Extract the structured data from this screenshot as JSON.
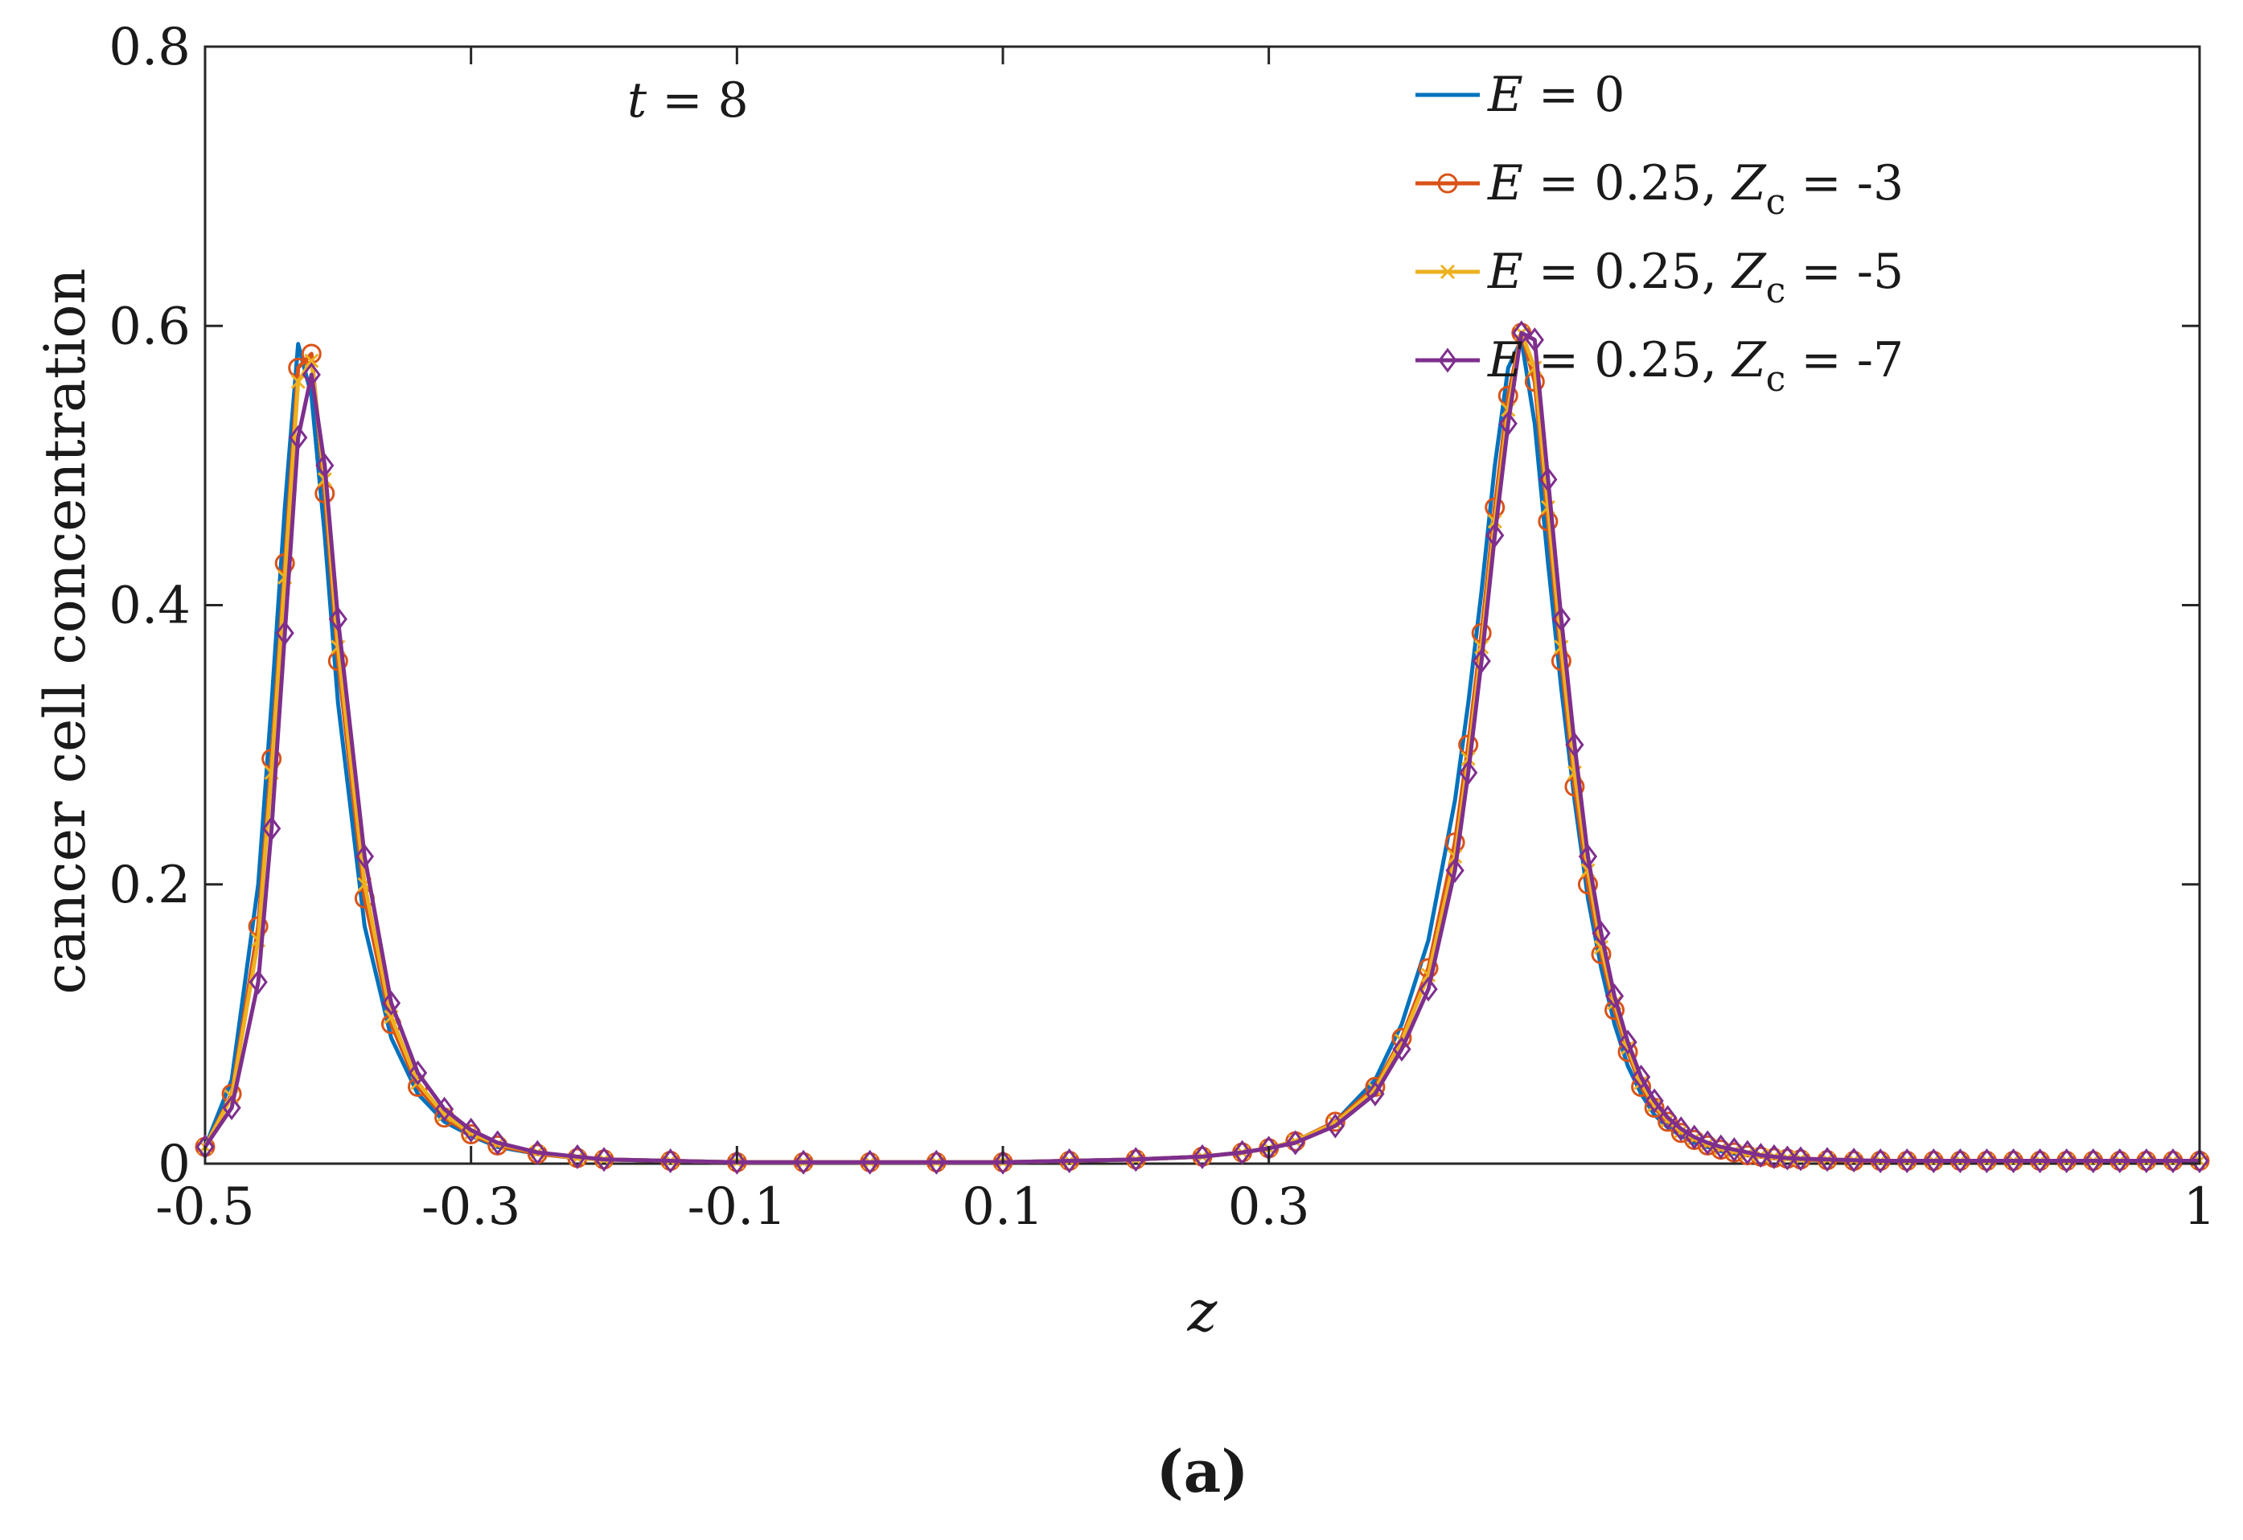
{
  "chart_data": {
    "type": "line",
    "xlabel": "z",
    "ylabel": "cancer cell concentration",
    "annotation": "t = 8",
    "caption": "(a)",
    "xlim": [
      -0.5,
      1
    ],
    "ylim": [
      0,
      0.8
    ],
    "xticks": [
      -0.5,
      -0.3,
      -0.1,
      0.1,
      0.3,
      1
    ],
    "xtick_labels": [
      "-0.5",
      "-0.3",
      "-0.1",
      "0.1",
      "0.3",
      "1"
    ],
    "yticks": [
      0,
      0.2,
      0.4,
      0.6,
      0.8
    ],
    "ytick_labels": [
      "0",
      "0.2",
      "0.4",
      "0.6",
      "0.8"
    ],
    "grid": false,
    "legend_position": "top-right",
    "series": [
      {
        "name": "E = 0",
        "color": "#0072BD",
        "marker": "none",
        "x": [
          -0.5,
          -0.48,
          -0.46,
          -0.45,
          -0.44,
          -0.43,
          -0.42,
          -0.41,
          -0.4,
          -0.38,
          -0.36,
          -0.34,
          -0.32,
          -0.3,
          -0.28,
          -0.25,
          -0.22,
          -0.2,
          -0.15,
          -0.1,
          -0.05,
          0.0,
          0.05,
          0.1,
          0.15,
          0.2,
          0.25,
          0.28,
          0.3,
          0.32,
          0.35,
          0.38,
          0.4,
          0.42,
          0.44,
          0.45,
          0.46,
          0.47,
          0.48,
          0.49,
          0.5,
          0.51,
          0.52,
          0.53,
          0.54,
          0.55,
          0.56,
          0.57,
          0.58,
          0.59,
          0.6,
          0.61,
          0.62,
          0.63,
          0.64,
          0.65,
          0.66,
          0.67,
          0.68,
          0.69,
          0.7,
          0.72,
          0.74,
          0.76,
          0.78,
          0.8,
          0.82,
          0.84,
          0.86,
          0.88,
          0.9,
          0.92,
          0.94,
          0.96,
          0.98,
          1.0
        ],
        "y": [
          0.012,
          0.06,
          0.2,
          0.33,
          0.47,
          0.587,
          0.55,
          0.45,
          0.33,
          0.17,
          0.09,
          0.05,
          0.03,
          0.02,
          0.012,
          0.007,
          0.004,
          0.003,
          0.002,
          0.001,
          0.001,
          0.001,
          0.001,
          0.001,
          0.002,
          0.003,
          0.005,
          0.008,
          0.011,
          0.016,
          0.03,
          0.06,
          0.1,
          0.16,
          0.26,
          0.33,
          0.41,
          0.5,
          0.57,
          0.59,
          0.53,
          0.43,
          0.34,
          0.26,
          0.19,
          0.14,
          0.1,
          0.07,
          0.05,
          0.035,
          0.026,
          0.02,
          0.015,
          0.012,
          0.009,
          0.007,
          0.006,
          0.005,
          0.004,
          0.0035,
          0.003,
          0.0025,
          0.002,
          0.002,
          0.002,
          0.002,
          0.002,
          0.002,
          0.002,
          0.002,
          0.002,
          0.002,
          0.002,
          0.002,
          0.002,
          0.002
        ]
      },
      {
        "name": "E = 0.25, Zc = -3",
        "color": "#D95319",
        "marker": "circle",
        "x": [
          -0.5,
          -0.48,
          -0.46,
          -0.45,
          -0.44,
          -0.43,
          -0.42,
          -0.41,
          -0.4,
          -0.38,
          -0.36,
          -0.34,
          -0.32,
          -0.3,
          -0.28,
          -0.25,
          -0.22,
          -0.2,
          -0.15,
          -0.1,
          -0.05,
          0.0,
          0.05,
          0.1,
          0.15,
          0.2,
          0.25,
          0.28,
          0.3,
          0.32,
          0.35,
          0.38,
          0.4,
          0.42,
          0.44,
          0.45,
          0.46,
          0.47,
          0.48,
          0.49,
          0.5,
          0.51,
          0.52,
          0.53,
          0.54,
          0.55,
          0.56,
          0.57,
          0.58,
          0.59,
          0.6,
          0.61,
          0.62,
          0.63,
          0.64,
          0.65,
          0.66,
          0.67,
          0.68,
          0.69,
          0.7,
          0.72,
          0.74,
          0.76,
          0.78,
          0.8,
          0.82,
          0.84,
          0.86,
          0.88,
          0.9,
          0.92,
          0.94,
          0.96,
          0.98,
          1.0
        ],
        "y": [
          0.012,
          0.05,
          0.17,
          0.29,
          0.43,
          0.57,
          0.58,
          0.48,
          0.36,
          0.19,
          0.1,
          0.055,
          0.033,
          0.021,
          0.013,
          0.007,
          0.004,
          0.003,
          0.002,
          0.001,
          0.001,
          0.001,
          0.001,
          0.001,
          0.002,
          0.003,
          0.005,
          0.008,
          0.011,
          0.016,
          0.03,
          0.055,
          0.09,
          0.14,
          0.23,
          0.3,
          0.38,
          0.47,
          0.55,
          0.595,
          0.56,
          0.46,
          0.36,
          0.27,
          0.2,
          0.15,
          0.11,
          0.08,
          0.055,
          0.04,
          0.03,
          0.022,
          0.017,
          0.013,
          0.01,
          0.008,
          0.006,
          0.005,
          0.004,
          0.0035,
          0.003,
          0.0025,
          0.002,
          0.002,
          0.002,
          0.002,
          0.002,
          0.002,
          0.002,
          0.002,
          0.002,
          0.002,
          0.002,
          0.002,
          0.002,
          0.002
        ]
      },
      {
        "name": "E = 0.25, Zc = -5",
        "color": "#EDB120",
        "marker": "x",
        "x": [
          -0.5,
          -0.48,
          -0.46,
          -0.45,
          -0.44,
          -0.43,
          -0.42,
          -0.41,
          -0.4,
          -0.38,
          -0.36,
          -0.34,
          -0.32,
          -0.3,
          -0.28,
          -0.25,
          -0.22,
          -0.2,
          -0.15,
          -0.1,
          -0.05,
          0.0,
          0.05,
          0.1,
          0.15,
          0.2,
          0.25,
          0.28,
          0.3,
          0.32,
          0.35,
          0.38,
          0.4,
          0.42,
          0.44,
          0.45,
          0.46,
          0.47,
          0.48,
          0.49,
          0.5,
          0.51,
          0.52,
          0.53,
          0.54,
          0.55,
          0.56,
          0.57,
          0.58,
          0.59,
          0.6,
          0.61,
          0.62,
          0.63,
          0.64,
          0.65,
          0.66,
          0.67,
          0.68,
          0.69,
          0.7,
          0.72,
          0.74,
          0.76,
          0.78,
          0.8,
          0.82,
          0.84,
          0.86,
          0.88,
          0.9,
          0.92,
          0.94,
          0.96,
          0.98,
          1.0
        ],
        "y": [
          0.012,
          0.048,
          0.16,
          0.28,
          0.42,
          0.56,
          0.575,
          0.49,
          0.37,
          0.2,
          0.105,
          0.058,
          0.035,
          0.022,
          0.014,
          0.008,
          0.004,
          0.003,
          0.002,
          0.001,
          0.001,
          0.001,
          0.001,
          0.001,
          0.002,
          0.003,
          0.005,
          0.008,
          0.011,
          0.016,
          0.029,
          0.053,
          0.088,
          0.135,
          0.22,
          0.29,
          0.37,
          0.46,
          0.54,
          0.595,
          0.57,
          0.47,
          0.37,
          0.28,
          0.21,
          0.155,
          0.115,
          0.083,
          0.058,
          0.042,
          0.031,
          0.023,
          0.018,
          0.014,
          0.011,
          0.009,
          0.007,
          0.006,
          0.005,
          0.004,
          0.0035,
          0.003,
          0.0025,
          0.002,
          0.002,
          0.002,
          0.002,
          0.002,
          0.002,
          0.002,
          0.002,
          0.002,
          0.002,
          0.002,
          0.002,
          0.002
        ]
      },
      {
        "name": "E = 0.25, Zc = -7",
        "color": "#7E2F8E",
        "marker": "diamond",
        "x": [
          -0.5,
          -0.48,
          -0.46,
          -0.45,
          -0.44,
          -0.43,
          -0.42,
          -0.41,
          -0.4,
          -0.38,
          -0.36,
          -0.34,
          -0.32,
          -0.3,
          -0.28,
          -0.25,
          -0.22,
          -0.2,
          -0.15,
          -0.1,
          -0.05,
          0.0,
          0.05,
          0.1,
          0.15,
          0.2,
          0.25,
          0.28,
          0.3,
          0.32,
          0.35,
          0.38,
          0.4,
          0.42,
          0.44,
          0.45,
          0.46,
          0.47,
          0.48,
          0.49,
          0.5,
          0.51,
          0.52,
          0.53,
          0.54,
          0.55,
          0.56,
          0.57,
          0.58,
          0.59,
          0.6,
          0.61,
          0.62,
          0.63,
          0.64,
          0.65,
          0.66,
          0.67,
          0.68,
          0.69,
          0.7,
          0.72,
          0.74,
          0.76,
          0.78,
          0.8,
          0.82,
          0.84,
          0.86,
          0.88,
          0.9,
          0.92,
          0.94,
          0.96,
          0.98,
          1.0
        ],
        "y": [
          0.012,
          0.04,
          0.13,
          0.24,
          0.38,
          0.52,
          0.565,
          0.5,
          0.39,
          0.22,
          0.115,
          0.065,
          0.039,
          0.024,
          0.015,
          0.008,
          0.005,
          0.003,
          0.002,
          0.001,
          0.001,
          0.001,
          0.001,
          0.001,
          0.002,
          0.003,
          0.005,
          0.008,
          0.011,
          0.015,
          0.027,
          0.05,
          0.082,
          0.125,
          0.21,
          0.28,
          0.36,
          0.45,
          0.53,
          0.595,
          0.59,
          0.49,
          0.39,
          0.3,
          0.22,
          0.165,
          0.12,
          0.087,
          0.062,
          0.045,
          0.033,
          0.025,
          0.019,
          0.015,
          0.012,
          0.01,
          0.008,
          0.006,
          0.005,
          0.004,
          0.0035,
          0.003,
          0.0025,
          0.002,
          0.002,
          0.002,
          0.002,
          0.002,
          0.002,
          0.002,
          0.002,
          0.002,
          0.002,
          0.002,
          0.002,
          0.002
        ]
      }
    ],
    "legend": [
      {
        "prefix": "E",
        "value": " = 0",
        "sub_label": "",
        "sub_value": ""
      },
      {
        "prefix": "E",
        "value": " = 0.25, ",
        "sub_label": "Z",
        "sub_index": "c",
        "sub_value": " = -3"
      },
      {
        "prefix": "E",
        "value": " = 0.25, ",
        "sub_label": "Z",
        "sub_index": "c",
        "sub_value": " = -5"
      },
      {
        "prefix": "E",
        "value": " = 0.25, ",
        "sub_label": "Z",
        "sub_index": "c",
        "sub_value": " = -7"
      }
    ]
  }
}
